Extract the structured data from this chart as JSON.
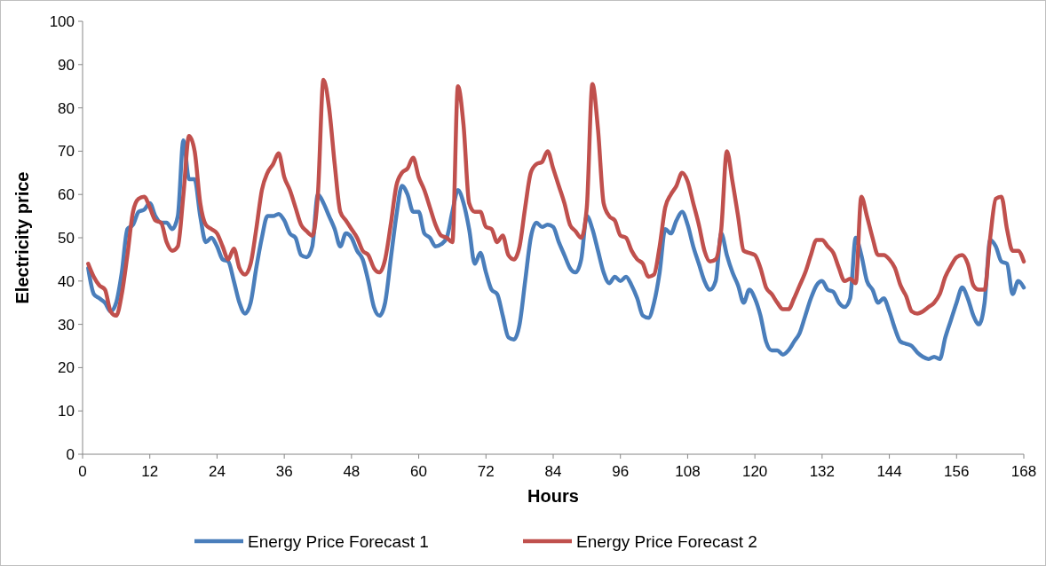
{
  "chart_data": {
    "type": "line",
    "xlabel": "Hours",
    "ylabel": "Electricity price",
    "x": [
      1,
      2,
      3,
      4,
      5,
      6,
      7,
      8,
      9,
      10,
      11,
      12,
      13,
      14,
      15,
      16,
      17,
      18,
      19,
      20,
      21,
      22,
      23,
      24,
      25,
      26,
      27,
      28,
      29,
      30,
      31,
      32,
      33,
      34,
      35,
      36,
      37,
      38,
      39,
      40,
      41,
      42,
      43,
      44,
      45,
      46,
      47,
      48,
      49,
      50,
      51,
      52,
      53,
      54,
      55,
      56,
      57,
      58,
      59,
      60,
      61,
      62,
      63,
      64,
      65,
      66,
      67,
      68,
      69,
      70,
      71,
      72,
      73,
      74,
      75,
      76,
      77,
      78,
      79,
      80,
      81,
      82,
      83,
      84,
      85,
      86,
      87,
      88,
      89,
      90,
      91,
      92,
      93,
      94,
      95,
      96,
      97,
      98,
      99,
      100,
      101,
      102,
      103,
      104,
      105,
      106,
      107,
      108,
      109,
      110,
      111,
      112,
      113,
      114,
      115,
      116,
      117,
      118,
      119,
      120,
      121,
      122,
      123,
      124,
      125,
      126,
      127,
      128,
      129,
      130,
      131,
      132,
      133,
      134,
      135,
      136,
      137,
      138,
      139,
      140,
      141,
      142,
      143,
      144,
      145,
      146,
      147,
      148,
      149,
      150,
      151,
      152,
      153,
      154,
      155,
      156,
      157,
      158,
      159,
      160,
      161,
      162,
      163,
      164,
      165,
      166,
      167,
      168
    ],
    "series": [
      {
        "name": "Energy Price Forecast 1",
        "color": "#4a7ebb",
        "values": [
          43,
          37,
          36,
          35,
          33,
          35,
          42,
          52,
          53,
          56,
          56.5,
          58,
          55,
          53.5,
          53.5,
          52,
          55,
          72.5,
          63.5,
          63.5,
          55,
          49,
          50,
          48,
          45,
          44.5,
          40,
          35,
          32.5,
          35,
          43,
          50,
          55,
          55,
          55.5,
          54,
          51,
          50,
          46,
          45.5,
          48,
          60,
          58,
          55,
          52,
          48,
          51,
          50,
          47,
          45,
          40,
          34,
          32,
          35,
          45,
          55,
          62,
          60,
          56,
          56,
          51,
          50,
          48,
          48.5,
          50,
          56,
          61,
          58,
          52,
          44,
          46.5,
          42,
          38,
          37,
          32,
          27,
          26.5,
          30,
          40,
          50,
          53.5,
          52.5,
          53,
          52.5,
          49,
          46,
          43,
          42,
          45,
          55,
          52,
          47,
          42,
          39.5,
          41,
          40,
          41,
          39,
          36,
          32,
          31.5,
          35,
          42,
          52,
          51,
          54,
          56,
          53,
          48,
          44,
          40,
          38,
          40,
          51,
          46,
          42,
          39,
          35,
          38,
          36,
          32,
          26,
          24,
          24,
          23,
          24,
          26,
          28,
          32,
          36,
          39,
          40,
          38,
          37.5,
          35,
          34,
          36,
          50,
          46,
          40,
          38,
          35,
          36,
          33,
          29,
          26,
          25.5,
          25,
          23.5,
          22.5,
          22,
          22.5,
          22,
          27,
          31,
          35,
          38.5,
          36,
          32,
          30,
          35,
          49.5,
          48,
          44.5,
          44,
          37,
          40,
          38.5
        ]
      },
      {
        "name": "Energy Price Forecast 2",
        "color": "#c0504d",
        "values": [
          44,
          41,
          39,
          38,
          33,
          32,
          37,
          46,
          56,
          59,
          59.5,
          57,
          54,
          53.5,
          49,
          47,
          48,
          60,
          73.5,
          70,
          58,
          53,
          52,
          51,
          48,
          45,
          47.5,
          43,
          41.5,
          44,
          52,
          61,
          65,
          67,
          69.5,
          64,
          61,
          57,
          53,
          51.5,
          50.5,
          60,
          86.5,
          80,
          67,
          56,
          54,
          52,
          50,
          47,
          46,
          43,
          42,
          45,
          53,
          62,
          65,
          66,
          68.5,
          64,
          61,
          57,
          53,
          50.5,
          50,
          49,
          85,
          76,
          58,
          56,
          56,
          52.5,
          52,
          49,
          50.5,
          46,
          45,
          48,
          57,
          65,
          67,
          67.5,
          70,
          66,
          62,
          58,
          53,
          51.5,
          50,
          57,
          85.5,
          75,
          58,
          55,
          54,
          50.5,
          50,
          47,
          45,
          44,
          41,
          41.5,
          48,
          57,
          60,
          62,
          65,
          63,
          58,
          53,
          47,
          44.5,
          45,
          52,
          70,
          63,
          55,
          47,
          46.5,
          46,
          43,
          38.5,
          37,
          35,
          33.5,
          33.5,
          36,
          39,
          42,
          46,
          49.5,
          49.5,
          48,
          46.5,
          43,
          40,
          40.5,
          39.5,
          59.5,
          55,
          50,
          46,
          46,
          45,
          43,
          39,
          36.5,
          33,
          32.5,
          33,
          34,
          35,
          37,
          41,
          43.5,
          45.5,
          46,
          44,
          39,
          38,
          38,
          50,
          59,
          59.5,
          52,
          47,
          47,
          44.5
        ]
      }
    ],
    "xlim": [
      0,
      168
    ],
    "xticks": [
      0,
      12,
      24,
      36,
      48,
      60,
      72,
      84,
      96,
      108,
      120,
      132,
      144,
      156,
      168
    ],
    "ylim": [
      0,
      100
    ],
    "yticks": [
      0,
      10,
      20,
      30,
      40,
      50,
      60,
      70,
      80,
      90,
      100
    ],
    "grid": false,
    "legend": "bottom",
    "marker": "none",
    "line_style": "solid"
  }
}
